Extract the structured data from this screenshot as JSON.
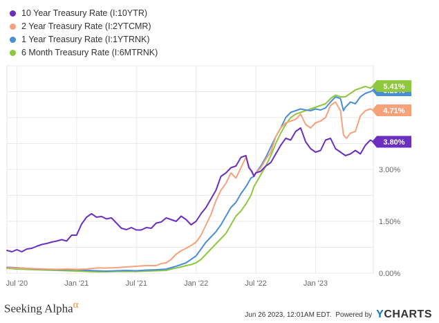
{
  "chart_data": {
    "type": "line",
    "title": "",
    "xlabel": "",
    "ylabel": "",
    "ylim": [
      0,
      6
    ],
    "y_ticks": [
      "0.00%",
      "1.50%",
      "3.00%"
    ],
    "y_tick_values": [
      0,
      1.5,
      3.0
    ],
    "x_ticks": [
      "Jul '20",
      "Jan '21",
      "Jul '21",
      "Jan '22",
      "Jul '22",
      "Jan '23"
    ],
    "x_tick_values": [
      5.0,
      11.0,
      17.0,
      23.0,
      29.0,
      35.0
    ],
    "xlim": [
      4.0,
      40.8
    ],
    "grid": true,
    "legend_position": "top-left",
    "series": [
      {
        "name": "10 Year Treasury Rate (I:10YTR)",
        "color": "#6a2fbf",
        "end_label": "3.80%",
        "x": [
          4.0,
          4.5,
          5.0,
          5.5,
          6.0,
          6.5,
          7.0,
          7.5,
          8.0,
          8.5,
          9.0,
          9.5,
          10.0,
          10.5,
          11.0,
          11.5,
          12.0,
          12.5,
          13.0,
          13.5,
          14.0,
          14.5,
          15.0,
          15.5,
          16.0,
          16.5,
          17.0,
          17.5,
          18.0,
          18.5,
          19.0,
          19.5,
          20.0,
          20.5,
          21.0,
          21.5,
          22.0,
          22.5,
          23.0,
          23.5,
          24.0,
          24.5,
          25.0,
          25.5,
          26.0,
          26.5,
          27.0,
          27.5,
          28.0,
          28.3,
          28.6,
          28.8,
          29.0,
          29.5,
          30.0,
          30.5,
          31.0,
          31.5,
          32.0,
          32.5,
          33.0,
          33.5,
          34.0,
          34.5,
          35.0,
          35.5,
          36.0,
          36.5,
          37.0,
          37.5,
          38.0,
          38.5,
          39.0,
          39.5,
          40.0,
          40.5,
          40.8
        ],
        "y": [
          0.66,
          0.62,
          0.68,
          0.62,
          0.7,
          0.72,
          0.78,
          0.83,
          0.86,
          0.9,
          0.93,
          0.97,
          0.93,
          1.1,
          1.1,
          1.42,
          1.62,
          1.72,
          1.62,
          1.64,
          1.57,
          1.6,
          1.45,
          1.3,
          1.26,
          1.32,
          1.25,
          1.25,
          1.32,
          1.3,
          1.45,
          1.48,
          1.6,
          1.55,
          1.5,
          1.65,
          1.55,
          1.4,
          1.5,
          1.72,
          1.9,
          2.15,
          2.4,
          2.8,
          2.9,
          3.05,
          3.1,
          3.35,
          3.4,
          3.05,
          2.95,
          2.8,
          2.9,
          2.95,
          3.1,
          3.2,
          3.45,
          3.7,
          3.9,
          3.85,
          4.1,
          4.2,
          3.8,
          3.6,
          3.5,
          3.55,
          3.85,
          3.9,
          3.6,
          3.5,
          3.4,
          3.45,
          3.55,
          3.45,
          3.7,
          3.85,
          3.8
        ]
      },
      {
        "name": "2 Year Treasury Rate (I:2YTCMR)",
        "color": "#f5a27a",
        "end_label": "4.71%",
        "x": [
          4.0,
          5.0,
          6.0,
          7.0,
          8.0,
          9.0,
          10.0,
          11.0,
          12.0,
          13.0,
          14.0,
          15.0,
          16.0,
          17.0,
          18.0,
          19.0,
          19.5,
          20.0,
          20.5,
          21.0,
          21.5,
          22.0,
          22.5,
          23.0,
          23.5,
          24.0,
          24.5,
          25.0,
          25.5,
          26.0,
          26.5,
          27.0,
          27.5,
          28.0,
          28.3,
          28.6,
          28.8,
          29.0,
          29.5,
          30.0,
          30.5,
          31.0,
          31.5,
          32.0,
          32.5,
          33.0,
          33.5,
          34.0,
          34.5,
          35.0,
          35.5,
          36.0,
          36.5,
          37.0,
          37.5,
          37.8,
          38.1,
          38.5,
          39.0,
          39.5,
          40.0,
          40.5,
          40.8
        ],
        "y": [
          0.15,
          0.15,
          0.14,
          0.13,
          0.12,
          0.11,
          0.12,
          0.11,
          0.12,
          0.15,
          0.15,
          0.16,
          0.18,
          0.2,
          0.22,
          0.22,
          0.28,
          0.3,
          0.4,
          0.55,
          0.65,
          0.72,
          0.8,
          0.9,
          1.1,
          1.4,
          1.7,
          2.1,
          2.4,
          2.6,
          2.9,
          2.75,
          3.05,
          3.35,
          3.1,
          2.9,
          2.85,
          2.9,
          3.05,
          3.3,
          3.5,
          3.95,
          4.2,
          4.35,
          4.4,
          4.45,
          4.6,
          4.3,
          4.2,
          4.35,
          4.4,
          4.5,
          4.85,
          4.95,
          4.7,
          4.0,
          3.9,
          4.05,
          4.1,
          4.55,
          4.7,
          4.75,
          4.71
        ]
      },
      {
        "name": "1 Year Treasury Rate (I:1YTRNK)",
        "color": "#4a8fd6",
        "end_label": "5.29%",
        "x": [
          4.0,
          5.0,
          6.0,
          7.0,
          8.0,
          9.0,
          10.0,
          11.0,
          12.0,
          13.0,
          14.0,
          15.0,
          16.0,
          17.0,
          18.0,
          19.0,
          20.0,
          20.5,
          21.0,
          21.5,
          22.0,
          22.5,
          23.0,
          23.5,
          24.0,
          24.5,
          25.0,
          25.5,
          26.0,
          26.5,
          27.0,
          27.5,
          28.0,
          28.5,
          28.8,
          29.0,
          29.5,
          30.0,
          30.5,
          31.0,
          31.5,
          32.0,
          32.5,
          33.0,
          33.5,
          34.0,
          34.5,
          35.0,
          35.5,
          36.0,
          36.5,
          37.0,
          37.5,
          37.8,
          38.0,
          38.5,
          39.0,
          39.5,
          40.0,
          40.5,
          40.8
        ],
        "y": [
          0.17,
          0.16,
          0.14,
          0.12,
          0.11,
          0.1,
          0.1,
          0.1,
          0.08,
          0.07,
          0.06,
          0.07,
          0.08,
          0.07,
          0.09,
          0.1,
          0.12,
          0.16,
          0.2,
          0.25,
          0.3,
          0.4,
          0.5,
          0.7,
          0.9,
          1.05,
          1.2,
          1.4,
          1.65,
          1.9,
          2.05,
          2.3,
          2.5,
          2.75,
          2.8,
          2.9,
          3.1,
          3.35,
          3.65,
          3.95,
          4.2,
          4.5,
          4.65,
          4.7,
          4.75,
          4.72,
          4.7,
          4.75,
          4.72,
          4.78,
          4.95,
          5.1,
          5.05,
          4.7,
          4.8,
          4.95,
          4.9,
          5.1,
          5.2,
          5.25,
          5.29
        ]
      },
      {
        "name": "6 Month Treasury Rate (I:6MTRNK)",
        "color": "#8fc73e",
        "end_label": "5.41%",
        "x": [
          4.0,
          5.0,
          6.0,
          7.0,
          8.0,
          9.0,
          10.0,
          11.0,
          12.0,
          13.0,
          14.0,
          15.0,
          16.0,
          17.0,
          18.0,
          19.0,
          20.0,
          20.5,
          21.0,
          21.5,
          22.0,
          22.5,
          23.0,
          23.5,
          24.0,
          24.5,
          25.0,
          25.5,
          26.0,
          26.5,
          27.0,
          27.5,
          28.0,
          28.5,
          28.8,
          29.0,
          29.5,
          30.0,
          30.5,
          31.0,
          31.5,
          32.0,
          32.5,
          33.0,
          33.5,
          34.0,
          34.5,
          35.0,
          35.5,
          36.0,
          36.5,
          37.0,
          37.5,
          38.0,
          38.5,
          39.0,
          39.5,
          40.0,
          40.5,
          40.8
        ],
        "y": [
          0.14,
          0.12,
          0.11,
          0.1,
          0.09,
          0.08,
          0.07,
          0.06,
          0.05,
          0.04,
          0.04,
          0.05,
          0.05,
          0.05,
          0.06,
          0.07,
          0.08,
          0.12,
          0.15,
          0.18,
          0.22,
          0.25,
          0.3,
          0.4,
          0.55,
          0.7,
          0.85,
          1.0,
          1.15,
          1.4,
          1.65,
          1.8,
          2.0,
          2.25,
          2.5,
          2.6,
          2.85,
          3.1,
          3.4,
          3.75,
          4.05,
          4.3,
          4.5,
          4.6,
          4.65,
          4.7,
          4.75,
          4.8,
          4.85,
          4.9,
          5.05,
          5.15,
          5.1,
          5.1,
          5.2,
          5.3,
          5.35,
          5.4,
          5.35,
          5.41
        ]
      }
    ]
  },
  "footer": {
    "brand": "Seeking Alpha",
    "brand_mark": "α",
    "timestamp": "Jun 26 2023, 12:01AM EDT.",
    "powered_by": "Powered by",
    "ycharts_y": "Y",
    "ycharts_rest": "CHARTS"
  }
}
